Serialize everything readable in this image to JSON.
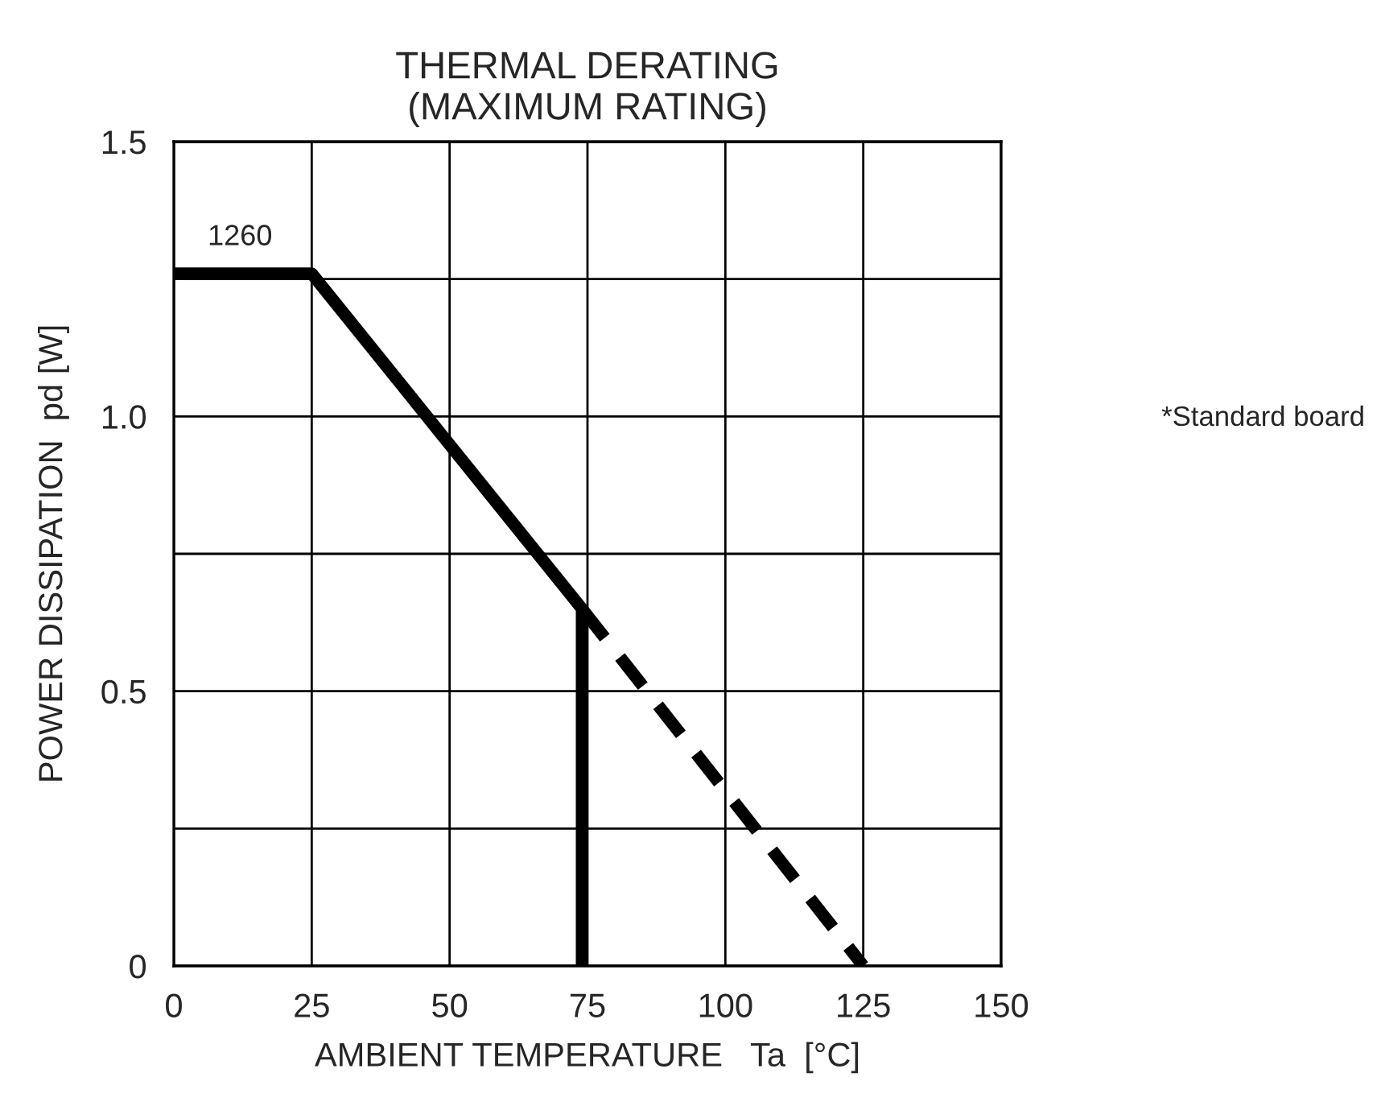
{
  "chart_data": {
    "type": "line",
    "title": "THERMAL DERATING\n(MAXIMUM RATING)",
    "xlabel": "AMBIENT TEMPERATURE   Ta  [°C]",
    "ylabel": "POWER DISSIPATION  pd [W]",
    "series": [
      {
        "x": [
          0,
          25,
          74,
          74
        ],
        "values": [
          1.26,
          1.26,
          0.65,
          0
        ],
        "color": "#000000",
        "line_style": "solid"
      },
      {
        "x": [
          74,
          125
        ],
        "values": [
          0.65,
          0
        ],
        "color": "#000000",
        "line_style": "dashed"
      }
    ],
    "annotations": [
      {
        "text": "1260",
        "x": 12,
        "y": 1.26
      },
      "*Standard board"
    ],
    "xlim": [
      0,
      150
    ],
    "xticks": [
      0,
      25,
      50,
      75,
      100,
      125,
      150
    ],
    "ylim": [
      0,
      1.5
    ],
    "yticks": [
      0,
      {
        "value": 0.25,
        "label": null
      },
      {
        "value": 0.5,
        "label": "0.5"
      },
      {
        "value": 0.75,
        "label": null
      },
      {
        "value": 1.0,
        "label": "1.0"
      },
      {
        "value": 1.25,
        "label": null
      },
      {
        "value": 1.5,
        "label": "1.5"
      }
    ],
    "grid": true,
    "legend": false,
    "marker": "none"
  }
}
